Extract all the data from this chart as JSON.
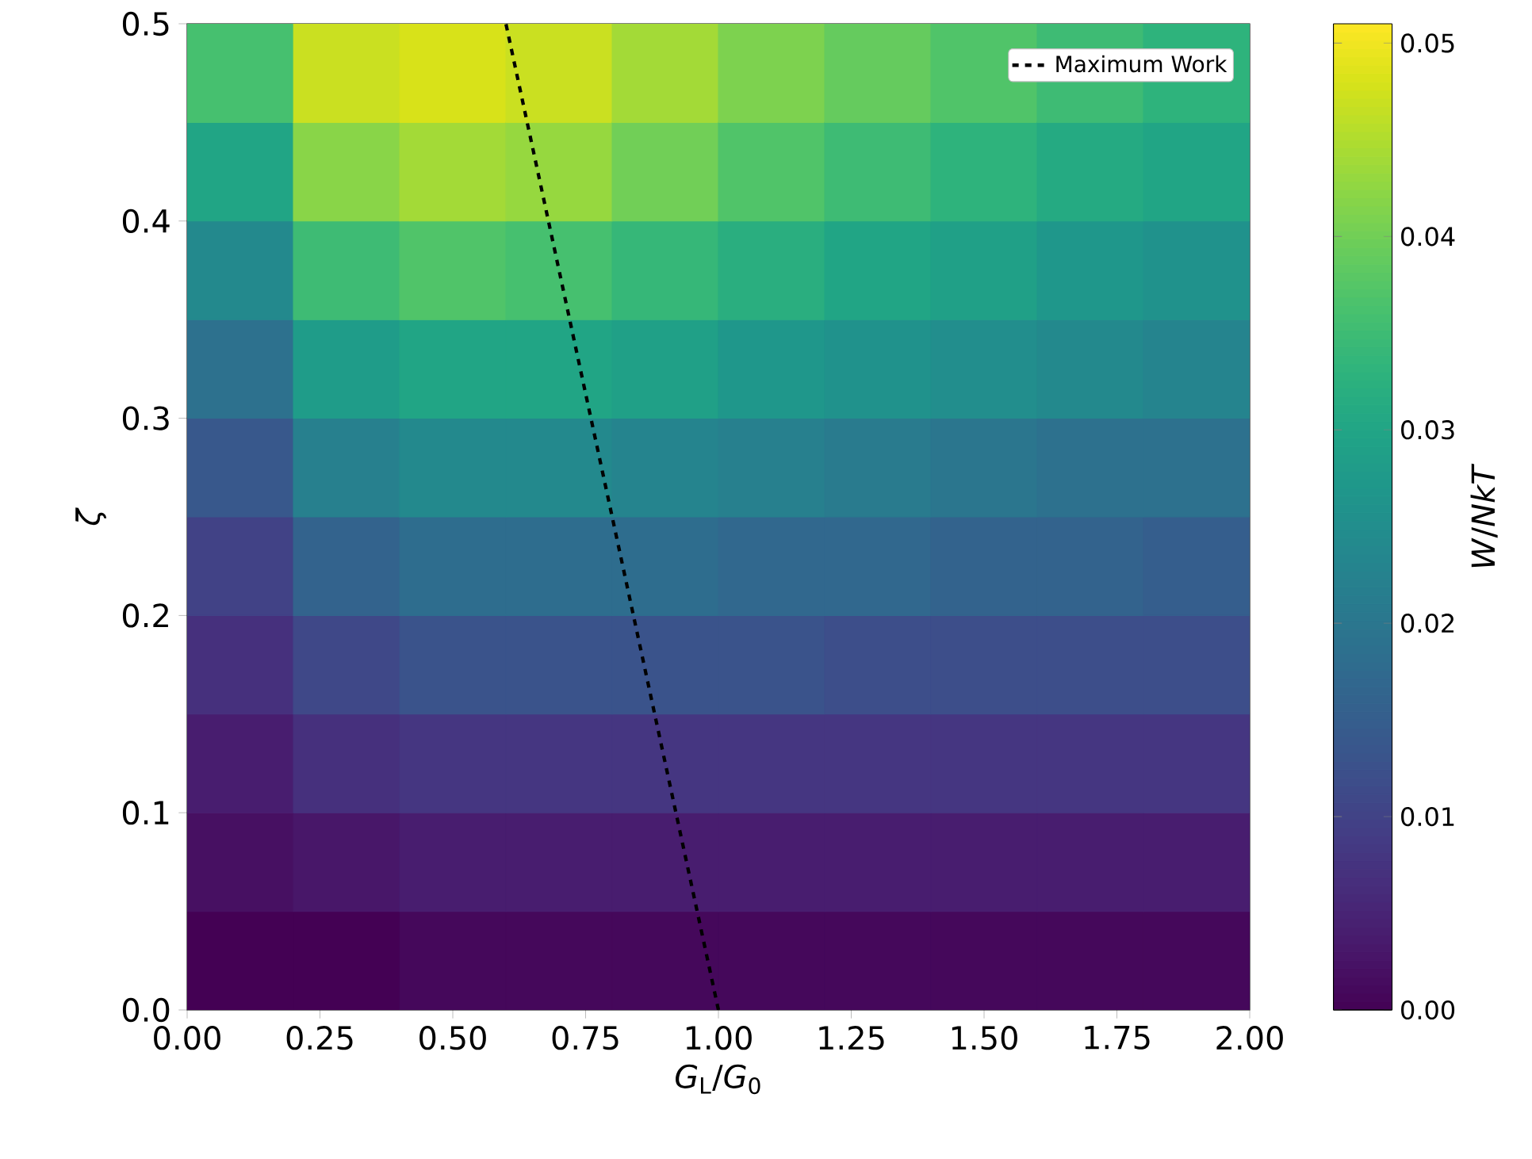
{
  "chart_data": {
    "type": "heatmap",
    "xlabel": "*G*$_{L}$/*G*$_{0}$",
    "ylabel": "*ζ*",
    "clabel": "*W*/*NkT*",
    "x": [
      0.1,
      0.3,
      0.5,
      0.7,
      0.9,
      1.1,
      1.3,
      1.5,
      1.7,
      1.9
    ],
    "y": [
      0.475,
      0.425,
      0.375,
      0.325,
      0.275,
      0.225,
      0.175,
      0.125,
      0.075,
      0.025
    ],
    "xlim": [
      0,
      2
    ],
    "ylim": [
      0,
      0.5
    ],
    "xticks": [
      {
        "value": 0,
        "label": "0.00"
      },
      {
        "value": 0.25,
        "label": "0.25"
      },
      {
        "value": 0.5,
        "label": "0.50"
      },
      {
        "value": 0.75,
        "label": "0.75"
      },
      {
        "value": 1,
        "label": "1.00"
      },
      {
        "value": 1.25,
        "label": "1.25"
      },
      {
        "value": 1.5,
        "label": "1.50"
      },
      {
        "value": 1.75,
        "label": "1.75"
      },
      {
        "value": 2,
        "label": "2.00"
      }
    ],
    "yticks": [
      {
        "value": 0,
        "label": "0.0"
      },
      0.1,
      0.2,
      0.3,
      0.4,
      0.5
    ],
    "clim": [
      0,
      0.051
    ],
    "cticks": [
      {
        "value": 0,
        "label": "0.00"
      },
      0.01,
      0.02,
      0.03,
      0.04,
      0.05
    ],
    "cells": [
      [
        0.036,
        0.047,
        0.048,
        0.047,
        0.044,
        0.041,
        0.039,
        0.037,
        0.035,
        0.033
      ],
      [
        0.03,
        0.042,
        0.044,
        0.043,
        0.04,
        0.037,
        0.035,
        0.033,
        0.031,
        0.03
      ],
      [
        0.024,
        0.035,
        0.037,
        0.036,
        0.034,
        0.032,
        0.03,
        0.029,
        0.027,
        0.026
      ],
      [
        0.019,
        0.028,
        0.03,
        0.03,
        0.029,
        0.027,
        0.026,
        0.025,
        0.024,
        0.023
      ],
      [
        0.014,
        0.022,
        0.024,
        0.024,
        0.023,
        0.022,
        0.021,
        0.02,
        0.019,
        0.019
      ],
      [
        0.01,
        0.016,
        0.018,
        0.018,
        0.018,
        0.017,
        0.017,
        0.016,
        0.016,
        0.015
      ],
      [
        0.007,
        0.011,
        0.013,
        0.013,
        0.013,
        0.013,
        0.012,
        0.012,
        0.012,
        0.012
      ],
      [
        0.004,
        0.007,
        0.008,
        0.008,
        0.008,
        0.008,
        0.008,
        0.008,
        0.008,
        0.008
      ],
      [
        0.002,
        0.003,
        0.004,
        0.004,
        0.004,
        0.004,
        0.004,
        0.004,
        0.004,
        0.004
      ],
      [
        0.0,
        0.0,
        0.001,
        0.001,
        0.001,
        0.001,
        0.001,
        0.001,
        0.001,
        0.001
      ]
    ],
    "series": [
      {
        "type": "line",
        "name": "Maximum Work",
        "color": "#000000",
        "line_style": "dashed",
        "x": [
          1.0,
          0.6
        ],
        "values": [
          0,
          0.5
        ]
      }
    ],
    "legend": "top right"
  }
}
